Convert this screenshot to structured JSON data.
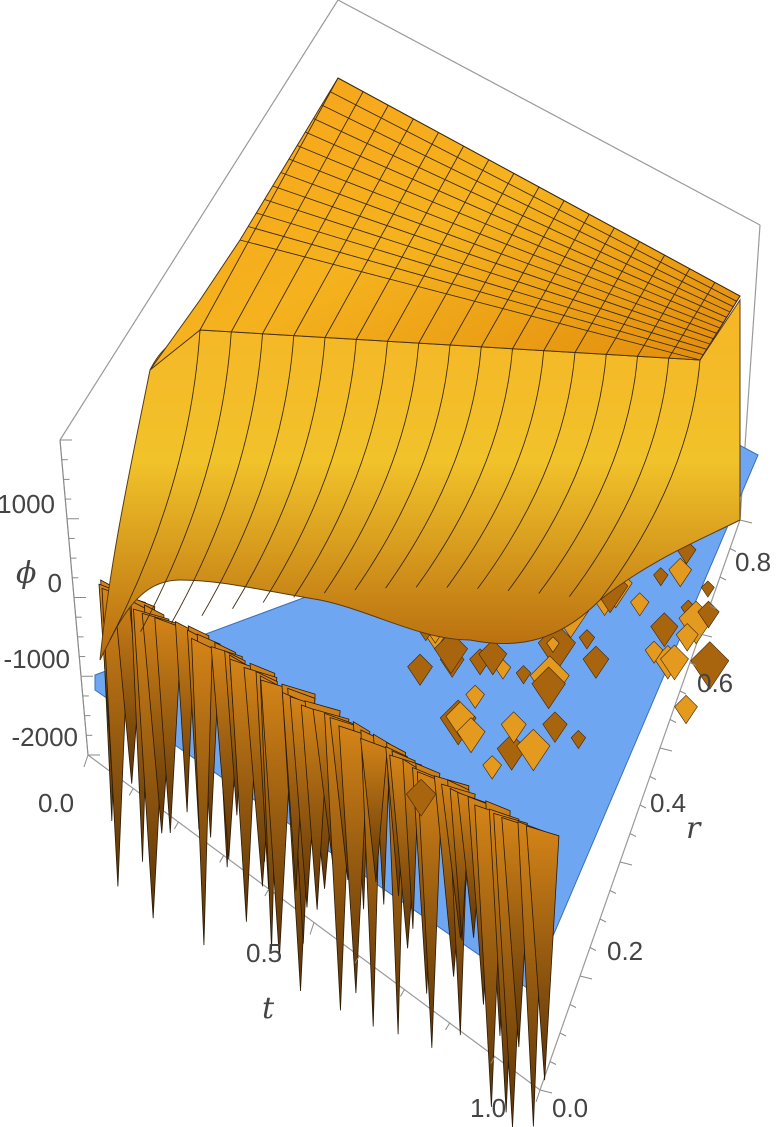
{
  "chart_data": {
    "type": "surface3d",
    "title": "",
    "axes": {
      "t": {
        "label": "t",
        "range": [
          0.0,
          1.0
        ],
        "ticks": [
          0.0,
          0.5,
          1.0
        ],
        "tick_labels": [
          "0.0",
          "0.5",
          "1.0"
        ]
      },
      "r": {
        "label": "r",
        "range": [
          0.0,
          0.85
        ],
        "ticks": [
          0.0,
          0.2,
          0.4,
          0.6,
          0.8
        ],
        "tick_labels": [
          "0.0",
          "0.2",
          "0.4",
          "0.6",
          "0.8"
        ]
      },
      "phi": {
        "label": "ϕ",
        "range": [
          -2300,
          1800
        ],
        "ticks": [
          -2000,
          -1000,
          0,
          1000
        ],
        "tick_labels": [
          "-2000",
          "-1000",
          "0",
          "1000"
        ]
      }
    },
    "surfaces": [
      {
        "name": "",
        "color": "#f39c12",
        "description_values": {
          "plateau_phi": 1700,
          "low_phi": -2300
        }
      },
      {
        "name": "",
        "color": "#6fa6f2",
        "constant_phi": -2000
      }
    ],
    "grid": true,
    "mesh": true
  }
}
